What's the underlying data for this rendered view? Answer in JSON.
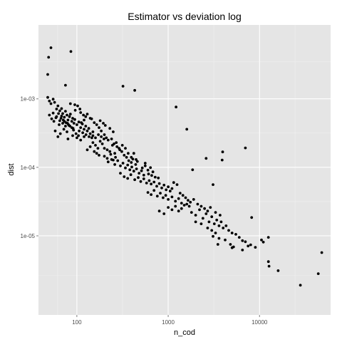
{
  "colors": {
    "panel_background": "#e5e5e5",
    "grid_major": "#ffffff",
    "grid_minor": "#f0f0f0",
    "point": "#000000",
    "tick_text": "#4d4d4d"
  },
  "chart_data": {
    "type": "scatter",
    "title": "Estimator vs deviation log",
    "xlabel": "n_cod",
    "ylabel": "dist",
    "x_scale": "log10",
    "y_scale": "log10",
    "xlim": [
      38,
      60000
    ],
    "ylim": [
      7e-07,
      0.012
    ],
    "grid": true,
    "x_ticks": [
      100,
      1000,
      10000
    ],
    "x_tick_labels": [
      "100",
      "1000",
      "10000"
    ],
    "y_ticks": [
      1e-05,
      0.0001,
      0.001
    ],
    "y_tick_labels": [
      "1e-05",
      "1e-04",
      "1e-03"
    ],
    "points": [
      [
        52,
        0.00557
      ],
      [
        49,
        0.00404
      ],
      [
        86,
        0.00491
      ],
      [
        48,
        0.00227
      ],
      [
        75,
        0.00158
      ],
      [
        320,
        0.00153
      ],
      [
        430,
        0.00133
      ],
      [
        1220,
        0.00076
      ],
      [
        1600,
        0.00036
      ],
      [
        7000,
        0.000192
      ],
      [
        3950,
        0.000168
      ],
      [
        2600,
        0.000135
      ],
      [
        3900,
        0.000128
      ],
      [
        1850,
        9.2e-05
      ],
      [
        3100,
        5.6e-05
      ],
      [
        48,
        0.00105
      ],
      [
        50,
        0.00093
      ],
      [
        52,
        0.00085
      ],
      [
        55,
        0.00099
      ],
      [
        57,
        0.00089
      ],
      [
        60,
        0.00071
      ],
      [
        62,
        0.00079
      ],
      [
        65,
        0.00067
      ],
      [
        68,
        0.00072
      ],
      [
        70,
        0.00061
      ],
      [
        73,
        0.00054
      ],
      [
        75,
        0.00066
      ],
      [
        78,
        0.00058
      ],
      [
        80,
        0.00049
      ],
      [
        83,
        0.00055
      ],
      [
        85,
        0.0006
      ],
      [
        88,
        0.00047
      ],
      [
        90,
        0.00052
      ],
      [
        93,
        0.00044
      ],
      [
        95,
        0.0005
      ],
      [
        100,
        0.00042
      ],
      [
        105,
        0.00046
      ],
      [
        110,
        0.00038
      ],
      [
        115,
        0.00043
      ],
      [
        120,
        0.00036
      ],
      [
        125,
        0.0004
      ],
      [
        130,
        0.00034
      ],
      [
        135,
        0.00037
      ],
      [
        140,
        0.00031
      ],
      [
        150,
        0.00033
      ],
      [
        55,
        0.00062
      ],
      [
        60,
        0.00055
      ],
      [
        65,
        0.00048
      ],
      [
        70,
        0.00044
      ],
      [
        75,
        0.0004
      ],
      [
        58,
        0.00034
      ],
      [
        62,
        0.00028
      ],
      [
        66,
        0.00031
      ],
      [
        72,
        0.00036
      ],
      [
        78,
        0.00033
      ],
      [
        82,
        0.00041
      ],
      [
        88,
        0.00038
      ],
      [
        92,
        0.00035
      ],
      [
        98,
        0.00031
      ],
      [
        104,
        0.00029
      ],
      [
        50,
        0.00058
      ],
      [
        53,
        0.00051
      ],
      [
        56,
        0.00047
      ],
      [
        59,
        0.00053
      ],
      [
        64,
        0.00042
      ],
      [
        85,
        0.00085
      ],
      [
        95,
        0.00082
      ],
      [
        102,
        0.00079
      ],
      [
        110,
        0.00063
      ],
      [
        118,
        0.00058
      ],
      [
        125,
        0.00055
      ],
      [
        130,
        0.0006
      ],
      [
        145,
        0.00051
      ],
      [
        155,
        0.00045
      ],
      [
        165,
        0.00042
      ],
      [
        175,
        0.00038
      ],
      [
        185,
        0.00034
      ],
      [
        200,
        0.0003
      ],
      [
        210,
        0.00027
      ],
      [
        220,
        0.00025
      ],
      [
        150,
        0.00023
      ],
      [
        160,
        0.00021
      ],
      [
        170,
        0.00019
      ],
      [
        180,
        0.00024
      ],
      [
        190,
        0.00022
      ],
      [
        130,
        0.00018
      ],
      [
        140,
        0.0002
      ],
      [
        155,
        0.00017
      ],
      [
        165,
        0.00016
      ],
      [
        175,
        0.00015
      ],
      [
        200,
        0.00019
      ],
      [
        215,
        0.00018
      ],
      [
        230,
        0.00017
      ],
      [
        245,
        0.00021
      ],
      [
        260,
        0.00016
      ],
      [
        270,
        0.00023
      ],
      [
        290,
        0.00019
      ],
      [
        310,
        0.00017
      ],
      [
        330,
        0.00015
      ],
      [
        350,
        0.00014
      ],
      [
        220,
        0.00012
      ],
      [
        240,
        0.00013
      ],
      [
        260,
        0.00011
      ],
      [
        280,
        0.000125
      ],
      [
        300,
        0.000105
      ],
      [
        320,
        0.000115
      ],
      [
        340,
        9.8e-05
      ],
      [
        360,
        0.000108
      ],
      [
        380,
        9.2e-05
      ],
      [
        400,
        0.000101
      ],
      [
        420,
        8.8e-05
      ],
      [
        450,
        9.5e-05
      ],
      [
        480,
        8.2e-05
      ],
      [
        510,
        8.9e-05
      ],
      [
        540,
        7.7e-05
      ],
      [
        300,
        8.2e-05
      ],
      [
        330,
        7.3e-05
      ],
      [
        360,
        6.9e-05
      ],
      [
        390,
        7.8e-05
      ],
      [
        430,
        6.6e-05
      ],
      [
        470,
        7.1e-05
      ],
      [
        500,
        6.2e-05
      ],
      [
        540,
        6.8e-05
      ],
      [
        580,
        5.9e-05
      ],
      [
        620,
        6.4e-05
      ],
      [
        650,
        5.7e-05
      ],
      [
        700,
        6.1e-05
      ],
      [
        750,
        5.3e-05
      ],
      [
        800,
        5.8e-05
      ],
      [
        850,
        5e-05
      ],
      [
        900,
        5.5e-05
      ],
      [
        950,
        4.7e-05
      ],
      [
        1000,
        5.2e-05
      ],
      [
        1050,
        4.5e-05
      ],
      [
        1100,
        4.9e-05
      ],
      [
        600,
        4.3e-05
      ],
      [
        650,
        4e-05
      ],
      [
        700,
        4.6e-05
      ],
      [
        760,
        3.8e-05
      ],
      [
        820,
        4.2e-05
      ],
      [
        880,
        3.6e-05
      ],
      [
        940,
        3.9e-05
      ],
      [
        1000,
        3.4e-05
      ],
      [
        1100,
        3.7e-05
      ],
      [
        1200,
        3.2e-05
      ],
      [
        1300,
        3.5e-05
      ],
      [
        1400,
        3e-05
      ],
      [
        1500,
        2.8e-05
      ],
      [
        1600,
        2.9e-05
      ],
      [
        1700,
        2.7e-05
      ],
      [
        1000,
        2.6e-05
      ],
      [
        1100,
        2.4e-05
      ],
      [
        1200,
        2.7e-05
      ],
      [
        1300,
        2.3e-05
      ],
      [
        1400,
        2.5e-05
      ],
      [
        900,
        2.1e-05
      ],
      [
        800,
        2.3e-05
      ],
      [
        1800,
        2.2e-05
      ],
      [
        2000,
        2e-05
      ],
      [
        2200,
        2.4e-05
      ],
      [
        2400,
        1.8e-05
      ],
      [
        2600,
        2.1e-05
      ],
      [
        2800,
        1.6e-05
      ],
      [
        3000,
        1.9e-05
      ],
      [
        3200,
        1.5e-05
      ],
      [
        3400,
        1.7e-05
      ],
      [
        3600,
        1.4e-05
      ],
      [
        3800,
        1.6e-05
      ],
      [
        4000,
        1.3e-05
      ],
      [
        4300,
        1.4e-05
      ],
      [
        2000,
        1.6e-05
      ],
      [
        2300,
        1.5e-05
      ],
      [
        2700,
        1.3e-05
      ],
      [
        3000,
        1.2e-05
      ],
      [
        3300,
        1.1e-05
      ],
      [
        4600,
        1.2e-05
      ],
      [
        5000,
        1.1e-05
      ],
      [
        5500,
        1.05e-05
      ],
      [
        6000,
        9.5e-06
      ],
      [
        6500,
        8.5e-06
      ],
      [
        3100,
        9.8e-06
      ],
      [
        3600,
        9.2e-06
      ],
      [
        4200,
        8.7e-06
      ],
      [
        4800,
        7.5e-06
      ],
      [
        5200,
        6.9e-06
      ],
      [
        7000,
        8.2e-06
      ],
      [
        7500,
        7.1e-06
      ],
      [
        8000,
        7.4e-06
      ],
      [
        9000,
        6.8e-06
      ],
      [
        10500,
        8.7e-06
      ],
      [
        6500,
        6.2e-06
      ],
      [
        8200,
        1.85e-05
      ],
      [
        11000,
        8.1e-06
      ],
      [
        12500,
        9.5e-06
      ],
      [
        12500,
        4.2e-06
      ],
      [
        12700,
        3.6e-06
      ],
      [
        16000,
        3.1e-06
      ],
      [
        28000,
        1.9e-06
      ],
      [
        44000,
        2.8e-06
      ],
      [
        48000,
        5.7e-06
      ],
      [
        5000,
        6.7e-06
      ],
      [
        3500,
        7.5e-06
      ],
      [
        180,
        0.00048
      ],
      [
        195,
        0.00044
      ],
      [
        205,
        0.00041
      ],
      [
        230,
        0.00037
      ],
      [
        250,
        0.00033
      ],
      [
        140,
        0.00052
      ],
      [
        120,
        0.00049
      ],
      [
        112,
        0.00045
      ],
      [
        108,
        0.00071
      ],
      [
        96,
        0.00068
      ],
      [
        68,
        0.00056
      ],
      [
        73,
        0.00047
      ],
      [
        79,
        0.00044
      ],
      [
        84,
        0.0004
      ],
      [
        91,
        0.00037
      ],
      [
        63,
        0.00061
      ],
      [
        67,
        0.00052
      ],
      [
        71,
        0.00049
      ],
      [
        76,
        0.00045
      ],
      [
        81,
        0.00042
      ],
      [
        240,
        0.00026
      ],
      [
        255,
        0.00022
      ],
      [
        275,
        0.0002
      ],
      [
        295,
        0.00018
      ],
      [
        315,
        0.00021
      ],
      [
        340,
        0.00019
      ],
      [
        365,
        0.00016
      ],
      [
        395,
        0.00014
      ],
      [
        420,
        0.00016
      ],
      [
        445,
        0.00013
      ],
      [
        200,
        0.000145
      ],
      [
        215,
        0.000135
      ],
      [
        235,
        0.000155
      ],
      [
        250,
        0.000128
      ],
      [
        265,
        0.00014
      ],
      [
        370,
        0.000125
      ],
      [
        395,
        0.000118
      ],
      [
        410,
        0.000132
      ],
      [
        440,
        0.00011
      ],
      [
        460,
        0.000122
      ],
      [
        520,
        9.8e-05
      ],
      [
        560,
        0.000105
      ],
      [
        600,
        9.1e-05
      ],
      [
        640,
        9.9e-05
      ],
      [
        680,
        8.6e-05
      ],
      [
        560,
        0.000115
      ],
      [
        610,
        8e-05
      ],
      [
        660,
        7.6e-05
      ],
      [
        720,
        7.2e-05
      ],
      [
        780,
        7e-05
      ],
      [
        1150,
        6e-05
      ],
      [
        1250,
        5.6e-05
      ],
      [
        1350,
        4.2e-05
      ],
      [
        1450,
        3.9e-05
      ],
      [
        1550,
        3.6e-05
      ],
      [
        1650,
        3.3e-05
      ],
      [
        1750,
        3.1e-05
      ],
      [
        1900,
        3.4e-05
      ],
      [
        2100,
        2.9e-05
      ],
      [
        2300,
        2.7e-05
      ],
      [
        2500,
        2.5e-05
      ],
      [
        2700,
        2.3e-05
      ],
      [
        2900,
        2.6e-05
      ],
      [
        3300,
        2.2e-05
      ],
      [
        3700,
        2e-05
      ],
      [
        150,
        0.00029
      ],
      [
        160,
        0.00027
      ],
      [
        172,
        0.0003
      ],
      [
        185,
        0.00028
      ],
      [
        198,
        0.00026
      ],
      [
        106,
        0.00034
      ],
      [
        116,
        0.00032
      ],
      [
        126,
        0.0003
      ],
      [
        136,
        0.00028
      ],
      [
        146,
        0.00027
      ],
      [
        80,
        0.00026
      ],
      [
        90,
        0.00029
      ],
      [
        100,
        0.00027
      ],
      [
        110,
        0.00025
      ],
      [
        120,
        0.00028
      ]
    ]
  }
}
